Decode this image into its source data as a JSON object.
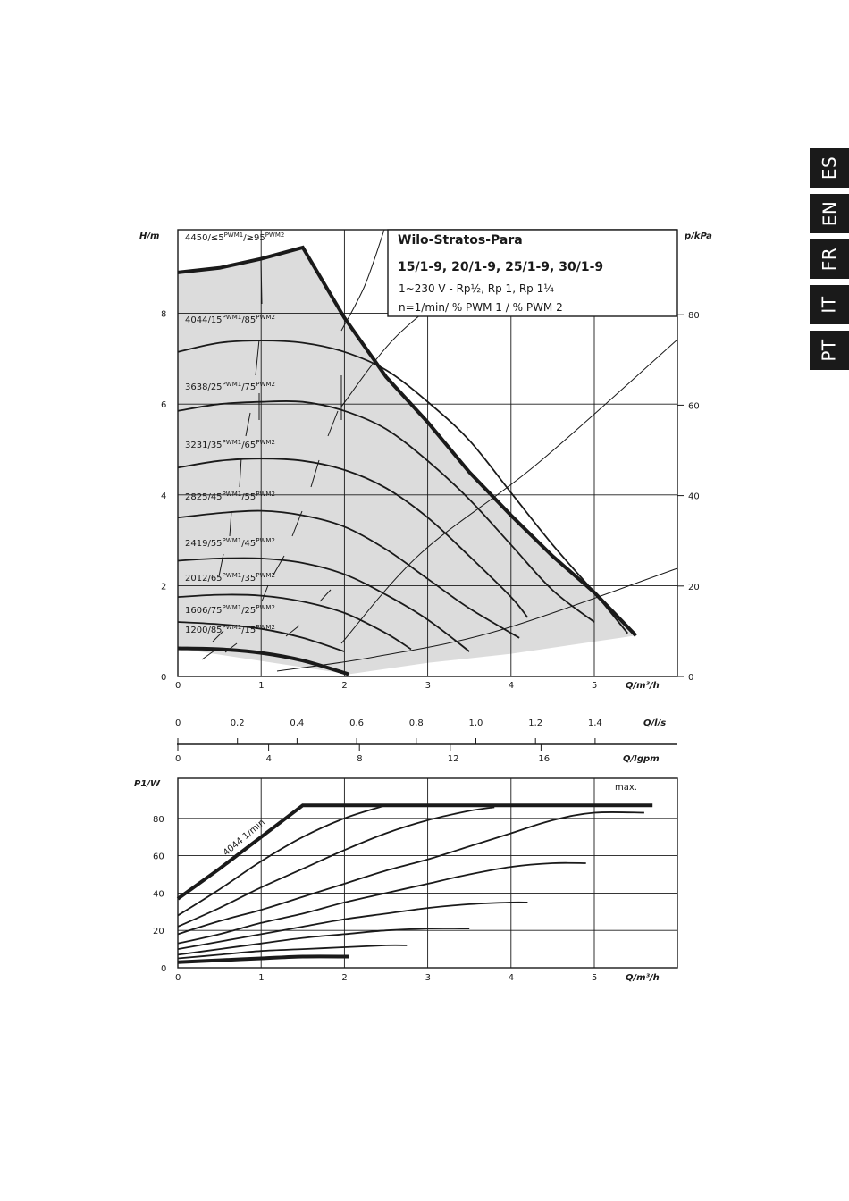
{
  "lang_tabs": [
    "ES",
    "EN",
    "FR",
    "IT",
    "PT"
  ],
  "legend": {
    "title": "Wilo-Stratos-Para",
    "models": "15/1-9, 20/1-9, 25/1-9, 30/1-9",
    "line1": "1~230 V - Rp½, Rp 1, Rp 1¼",
    "line2": "n=1/min/ % PWM 1 / % PWM 2"
  },
  "chart_data": [
    {
      "type": "line",
      "title": "",
      "xlabel": "Q/m³/h",
      "ylabel": "H/m",
      "ylabel_right": "p/kPa",
      "xlim": [
        0,
        6
      ],
      "ylim": [
        0,
        10
      ],
      "x_ticks": [
        0,
        1,
        2,
        3,
        4,
        5
      ],
      "y_ticks": [
        0,
        2,
        4,
        6,
        8
      ],
      "y_right_ticks": [
        0,
        20,
        40,
        60,
        80
      ],
      "grid": true,
      "operating_range_shaded": true,
      "max_curve": {
        "name": "4450/≤5 PWM1/≥95 PWM2",
        "x": [
          0,
          0.5,
          1.0,
          1.5,
          2.0,
          2.5,
          3.0,
          3.5,
          4.0,
          4.5,
          5.0,
          5.5
        ],
        "y": [
          8.9,
          9.0,
          9.2,
          9.45,
          7.9,
          6.6,
          5.6,
          4.5,
          3.55,
          2.65,
          1.85,
          0.9
        ]
      },
      "series": [
        {
          "name": "4044/15 PWM1/85 PWM2",
          "x": [
            0,
            0.5,
            1.0,
            1.5,
            2.0,
            2.5,
            3.0,
            3.5,
            4.0,
            4.5,
            5.0,
            5.4
          ],
          "y": [
            7.15,
            7.35,
            7.4,
            7.35,
            7.15,
            6.75,
            6.05,
            5.2,
            4.05,
            2.9,
            1.85,
            0.95
          ]
        },
        {
          "name": "3638/25 PWM1/75 PWM2",
          "x": [
            0,
            0.5,
            1.0,
            1.5,
            2.0,
            2.5,
            3.0,
            3.5,
            4.0,
            4.5,
            5.0
          ],
          "y": [
            5.85,
            6.0,
            6.05,
            6.05,
            5.85,
            5.45,
            4.75,
            3.9,
            2.9,
            1.9,
            1.2
          ]
        },
        {
          "name": "3231/35 PWM1/65 PWM2",
          "x": [
            0,
            0.5,
            1.0,
            1.5,
            2.0,
            2.5,
            3.0,
            3.5,
            4.0,
            4.2
          ],
          "y": [
            4.6,
            4.75,
            4.8,
            4.75,
            4.55,
            4.15,
            3.5,
            2.65,
            1.75,
            1.3
          ]
        },
        {
          "name": "2825/45 PWM1/55 PWM2",
          "x": [
            0,
            0.5,
            1.0,
            1.5,
            2.0,
            2.5,
            3.0,
            3.5,
            4.1
          ],
          "y": [
            3.5,
            3.6,
            3.65,
            3.55,
            3.3,
            2.8,
            2.15,
            1.5,
            0.85
          ]
        },
        {
          "name": "2419/55 PWM1/45 PWM2",
          "x": [
            0,
            0.5,
            1.0,
            1.5,
            2.0,
            2.5,
            3.0,
            3.5
          ],
          "y": [
            2.55,
            2.6,
            2.6,
            2.5,
            2.25,
            1.8,
            1.25,
            0.55
          ]
        },
        {
          "name": "2012/65 PWM1/35 PWM2",
          "x": [
            0,
            0.5,
            1.0,
            1.5,
            2.0,
            2.5,
            2.8
          ],
          "y": [
            1.75,
            1.8,
            1.78,
            1.65,
            1.4,
            0.95,
            0.6
          ]
        },
        {
          "name": "1606/75 PWM1/25 PWM2",
          "x": [
            0,
            0.5,
            1.0,
            1.5,
            2.0
          ],
          "y": [
            1.2,
            1.15,
            1.05,
            0.85,
            0.55
          ]
        },
        {
          "name": "1200/85 PWM1/15 PWM2",
          "x": [
            0,
            0.5,
            1.0,
            1.5,
            2.05
          ],
          "y": [
            0.62,
            0.6,
            0.52,
            0.35,
            0.05
          ]
        }
      ],
      "curve_labels": [
        {
          "main": "4450/≤5",
          "sup1": "PWM1",
          "mid": "/≥95",
          "sup2": "PWM2"
        },
        {
          "main": "4044/15",
          "sup1": "PWM1",
          "mid": "/85",
          "sup2": "PWM2"
        },
        {
          "main": "3638/25",
          "sup1": "PWM1",
          "mid": "/75",
          "sup2": "PWM2"
        },
        {
          "main": "3231/35",
          "sup1": "PWM1",
          "mid": "/65",
          "sup2": "PWM2"
        },
        {
          "main": "2825/45",
          "sup1": "PWM1",
          "mid": "/55",
          "sup2": "PWM2"
        },
        {
          "main": "2419/55",
          "sup1": "PWM1",
          "mid": "/45",
          "sup2": "PWM2"
        },
        {
          "main": "2012/65",
          "sup1": "PWM1",
          "mid": "/35",
          "sup2": "PWM2"
        },
        {
          "main": "1606/75",
          "sup1": "PWM1",
          "mid": "/25",
          "sup2": "PWM2"
        },
        {
          "main": "1200/85",
          "sup1": "PWM1",
          "mid": "/15",
          "sup2": "PWM2"
        }
      ]
    },
    {
      "type": "line",
      "title": "",
      "xlabel": "Q/l/s",
      "x_ticks": [
        0,
        0.2,
        0.4,
        0.6,
        0.8,
        1.0,
        1.2,
        1.4
      ],
      "x_tick_labels": [
        "0",
        "0,2",
        "0,4",
        "0,6",
        "0,8",
        "1,0",
        "1,2",
        "1,4"
      ]
    },
    {
      "type": "line",
      "title": "",
      "xlabel": "Q/Igpm",
      "x_ticks": [
        0,
        4,
        8,
        12,
        16
      ]
    },
    {
      "type": "line",
      "title": "",
      "xlabel": "Q/m³/h",
      "ylabel": "P1/W",
      "xlim": [
        0,
        6
      ],
      "ylim": [
        0,
        100
      ],
      "x_ticks": [
        0,
        1,
        2,
        3,
        4,
        5
      ],
      "y_ticks": [
        0,
        20,
        40,
        60,
        80
      ],
      "grid": true,
      "annotations": [
        "max.",
        "4044 1/min"
      ],
      "series": [
        {
          "name": "max.",
          "x": [
            0,
            0.5,
            1.0,
            1.5,
            2.0,
            3.0,
            4.0,
            5.0,
            5.7
          ],
          "y": [
            37,
            53,
            70,
            87,
            87,
            87,
            87,
            87,
            87
          ]
        },
        {
          "x": [
            0,
            0.5,
            1.0,
            1.5,
            2.0,
            2.5
          ],
          "y": [
            28,
            42,
            57,
            70,
            80,
            87
          ]
        },
        {
          "x": [
            0,
            0.5,
            1.0,
            1.5,
            2.0,
            2.5,
            3.0,
            3.5,
            3.8
          ],
          "y": [
            22,
            32,
            43,
            53,
            63,
            72,
            79,
            84,
            86
          ]
        },
        {
          "x": [
            0,
            0.5,
            1.0,
            1.5,
            2.0,
            2.5,
            3.0,
            3.5,
            4.0,
            4.5,
            5.0,
            5.6
          ],
          "y": [
            18,
            25,
            31,
            38,
            45,
            52,
            58,
            65,
            72,
            79,
            83,
            83
          ]
        },
        {
          "x": [
            0,
            0.5,
            1.0,
            1.5,
            2.0,
            2.5,
            3.0,
            3.5,
            4.0,
            4.5,
            4.9
          ],
          "y": [
            13,
            18,
            24,
            29,
            35,
            40,
            45,
            50,
            54,
            56,
            56
          ]
        },
        {
          "x": [
            0,
            0.5,
            1.0,
            1.5,
            2.0,
            2.5,
            3.0,
            3.5,
            4.0,
            4.2
          ],
          "y": [
            10,
            14,
            18,
            22,
            26,
            29,
            32,
            34,
            35,
            35
          ]
        },
        {
          "x": [
            0,
            0.5,
            1.0,
            1.5,
            2.0,
            2.5,
            3.0,
            3.5
          ],
          "y": [
            7,
            10,
            13,
            16,
            18,
            20,
            21,
            21
          ]
        },
        {
          "x": [
            0,
            0.5,
            1.0,
            1.5,
            2.0,
            2.5,
            2.75
          ],
          "y": [
            5,
            7,
            9,
            10,
            11,
            12,
            12
          ]
        },
        {
          "x": [
            0,
            0.5,
            1.0,
            1.5,
            2.05
          ],
          "y": [
            3,
            4,
            5,
            6,
            6
          ]
        }
      ]
    }
  ]
}
